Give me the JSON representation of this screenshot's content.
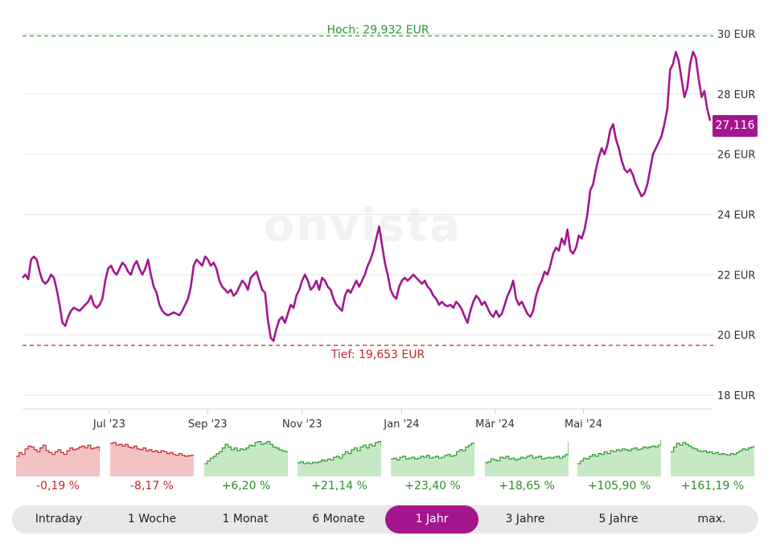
{
  "watermark": "onvista",
  "chart_data": {
    "type": "line",
    "title": "",
    "xlabel": "",
    "ylabel": "",
    "ylim": [
      17.6,
      30.3
    ],
    "yticks": [
      {
        "v": 30,
        "label": "30 EUR"
      },
      {
        "v": 28,
        "label": "28 EUR"
      },
      {
        "v": 26,
        "label": "26 EUR"
      },
      {
        "v": 24,
        "label": "24 EUR"
      },
      {
        "v": 22,
        "label": "22 EUR"
      },
      {
        "v": 20,
        "label": "20 EUR"
      },
      {
        "v": 18,
        "label": "18 EUR"
      }
    ],
    "xticks": [
      {
        "label": "Jul '23",
        "t": 0.157
      },
      {
        "label": "Sep '23",
        "t": 0.335
      },
      {
        "label": "Nov '23",
        "t": 0.506
      },
      {
        "label": "Jan '24",
        "t": 0.686
      },
      {
        "label": "Mär '24",
        "t": 0.855
      },
      {
        "label": "Mai '24",
        "t": 1.015
      }
    ],
    "grid": true,
    "high": {
      "value": 29.932,
      "label": "Hoch: 29,932 EUR"
    },
    "low": {
      "value": 19.653,
      "label": "Tief: 19,653 EUR"
    },
    "last": {
      "value": 27.116,
      "label": "27,116"
    },
    "series": [
      {
        "color": "#a3168f",
        "values": [
          21.9,
          22.0,
          21.85,
          22.5,
          22.6,
          22.5,
          22.1,
          21.8,
          21.7,
          21.8,
          22.0,
          21.9,
          21.5,
          21.0,
          20.4,
          20.3,
          20.6,
          20.8,
          20.9,
          20.85,
          20.8,
          20.9,
          21.0,
          21.1,
          21.3,
          21.0,
          20.9,
          21.0,
          21.2,
          21.8,
          22.2,
          22.3,
          22.1,
          22.0,
          22.2,
          22.4,
          22.3,
          22.1,
          22.0,
          22.3,
          22.45,
          22.2,
          22.0,
          22.2,
          22.5,
          22.0,
          21.6,
          21.4,
          21.0,
          20.8,
          20.7,
          20.65,
          20.7,
          20.75,
          20.7,
          20.65,
          20.8,
          21.0,
          21.2,
          21.6,
          22.3,
          22.5,
          22.4,
          22.3,
          22.6,
          22.5,
          22.3,
          22.4,
          22.2,
          21.8,
          21.6,
          21.5,
          21.4,
          21.5,
          21.3,
          21.4,
          21.6,
          21.8,
          21.7,
          21.5,
          21.9,
          22.0,
          22.1,
          21.8,
          21.5,
          21.4,
          20.5,
          19.9,
          19.8,
          20.2,
          20.5,
          20.6,
          20.4,
          20.7,
          21.0,
          20.9,
          21.3,
          21.5,
          21.8,
          22.0,
          21.8,
          21.5,
          21.6,
          21.8,
          21.5,
          21.9,
          21.8,
          21.6,
          21.5,
          21.2,
          21.0,
          20.9,
          20.8,
          21.3,
          21.5,
          21.4,
          21.6,
          21.8,
          21.6,
          21.8,
          22.0,
          22.3,
          22.5,
          22.8,
          23.2,
          23.6,
          23.0,
          22.4,
          22.0,
          21.5,
          21.3,
          21.2,
          21.6,
          21.8,
          21.9,
          21.8,
          21.9,
          22.0,
          21.9,
          21.8,
          21.7,
          21.8,
          21.6,
          21.5,
          21.3,
          21.2,
          21.0,
          21.1,
          21.0,
          20.95,
          21.0,
          20.9,
          21.1,
          21.0,
          20.85,
          20.6,
          20.4,
          20.8,
          21.1,
          21.3,
          21.2,
          21.0,
          21.1,
          20.9,
          20.7,
          20.6,
          20.8,
          20.6,
          20.7,
          21.0,
          21.3,
          21.5,
          21.8,
          21.2,
          21.0,
          21.1,
          20.9,
          20.7,
          20.6,
          20.8,
          21.3,
          21.6,
          21.8,
          22.1,
          22.0,
          22.3,
          22.7,
          22.9,
          22.8,
          23.2,
          23.0,
          23.5,
          22.8,
          22.7,
          22.9,
          23.3,
          23.2,
          23.5,
          24.0,
          24.8,
          25.0,
          25.5,
          25.9,
          26.2,
          26.0,
          26.3,
          26.8,
          27.0,
          26.5,
          26.2,
          25.8,
          25.5,
          25.4,
          25.5,
          25.3,
          25.0,
          24.8,
          24.6,
          24.7,
          25.0,
          25.5,
          26.0,
          26.2,
          26.4,
          26.6,
          27.0,
          27.5,
          28.8,
          29.0,
          29.4,
          29.1,
          28.5,
          27.9,
          28.2,
          29.0,
          29.4,
          29.2,
          28.5,
          27.9,
          28.1,
          27.5,
          27.116
        ]
      }
    ]
  },
  "mini_charts": [
    {
      "label": "-0,19 %",
      "dir": "neg",
      "values": [
        2.0,
        2.4,
        2.2,
        2.8,
        3.1,
        3.0,
        2.7,
        2.5,
        2.9,
        3.2,
        2.6,
        2.4,
        2.2,
        2.5,
        2.7,
        2.4,
        2.2,
        2.6,
        2.9,
        2.7,
        2.8,
        3.0,
        3.1,
        2.9,
        3.2,
        2.8,
        2.9,
        3.0,
        2.5
      ]
    },
    {
      "label": "-8,17 %",
      "dir": "neg",
      "values": [
        3.4,
        3.5,
        3.2,
        3.3,
        3.1,
        3.3,
        3.0,
        2.9,
        3.1,
        2.8,
        2.7,
        2.9,
        2.6,
        2.7,
        2.5,
        2.6,
        2.4,
        2.6,
        2.5,
        2.3,
        2.4,
        2.2,
        2.1,
        2.3,
        2.1,
        2.0,
        2.05,
        2.1,
        2.0
      ]
    },
    {
      "label": "+6,20 %",
      "dir": "pos",
      "values": [
        1.2,
        1.5,
        1.8,
        2.0,
        2.3,
        2.5,
        2.9,
        3.3,
        3.0,
        2.7,
        2.9,
        2.6,
        2.8,
        2.7,
        2.9,
        3.2,
        3.1,
        3.5,
        3.6,
        3.3,
        3.4,
        3.6,
        3.3,
        3.0,
        2.9,
        2.7,
        2.6,
        2.5,
        2.5
      ]
    },
    {
      "label": "+21,14 %",
      "dir": "pos",
      "values": [
        1.3,
        1.4,
        1.2,
        1.3,
        1.2,
        1.35,
        1.3,
        1.4,
        1.6,
        1.5,
        1.7,
        1.6,
        1.9,
        2.0,
        1.8,
        2.2,
        2.5,
        2.3,
        2.7,
        2.9,
        2.6,
        3.0,
        3.2,
        2.9,
        3.3,
        3.1,
        3.5,
        3.6,
        3.2
      ]
    },
    {
      "label": "+23,40 %",
      "dir": "pos",
      "values": [
        1.7,
        1.8,
        1.6,
        1.9,
        2.0,
        1.7,
        1.8,
        1.9,
        1.7,
        1.8,
        2.0,
        1.9,
        2.1,
        1.8,
        1.9,
        2.0,
        1.8,
        1.9,
        2.1,
        2.2,
        2.0,
        2.1,
        2.5,
        2.7,
        2.6,
        3.0,
        3.2,
        3.4,
        3.5
      ]
    },
    {
      "label": "+18,65 %",
      "dir": "pos",
      "values": [
        1.3,
        1.4,
        1.7,
        1.6,
        1.5,
        1.9,
        1.8,
        2.0,
        1.7,
        1.8,
        1.6,
        1.7,
        1.9,
        1.8,
        2.0,
        2.1,
        1.8,
        1.9,
        2.0,
        1.7,
        1.8,
        1.9,
        1.8,
        1.9,
        2.0,
        1.8,
        2.0,
        2.2,
        3.6
      ]
    },
    {
      "label": "+105,90 %",
      "dir": "pos",
      "values": [
        1.2,
        1.5,
        1.8,
        1.7,
        2.0,
        2.2,
        2.0,
        2.3,
        2.2,
        2.5,
        2.3,
        2.6,
        2.5,
        2.7,
        2.6,
        2.8,
        2.7,
        2.6,
        2.8,
        2.9,
        2.7,
        2.8,
        3.0,
        2.9,
        3.0,
        3.1,
        3.0,
        3.2,
        3.8
      ]
    },
    {
      "label": "+161,19 %",
      "dir": "pos",
      "values": [
        2.5,
        3.0,
        3.4,
        3.2,
        3.5,
        3.3,
        3.1,
        2.9,
        2.8,
        2.6,
        2.5,
        2.6,
        2.4,
        2.5,
        2.3,
        2.4,
        2.2,
        2.3,
        2.2,
        2.1,
        2.3,
        2.2,
        2.4,
        2.6,
        2.8,
        2.7,
        2.9,
        3.0,
        3.2
      ]
    }
  ],
  "tabs": [
    "Intraday",
    "1 Woche",
    "1 Monat",
    "6 Monate",
    "1 Jahr",
    "3 Jahre",
    "5 Jahre",
    "max."
  ],
  "active_tab": "1 Jahr",
  "colors": {
    "line": "#a3168f",
    "high": "#34b034",
    "low": "#c0282d",
    "grid": "#e5e5e5",
    "neg_fill": "#f3c3c3",
    "pos_fill": "#c7e8c4"
  }
}
